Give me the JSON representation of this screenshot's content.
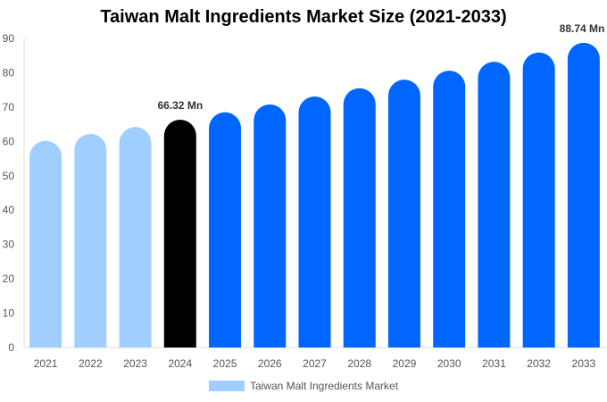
{
  "chart_data": {
    "type": "bar",
    "title": "Taiwan Malt Ingredients Market Size (2021-2033)",
    "categories": [
      "2021",
      "2022",
      "2023",
      "2024",
      "2025",
      "2026",
      "2027",
      "2028",
      "2029",
      "2030",
      "2031",
      "2032",
      "2033"
    ],
    "series": [
      {
        "name": "Taiwan Malt Ingredients Market",
        "values": [
          60.2,
          62.2,
          64.2,
          66.32,
          68.5,
          70.8,
          73.1,
          75.5,
          78.0,
          80.6,
          83.2,
          85.9,
          88.74
        ]
      }
    ],
    "data_labels": [
      {
        "category": "2024",
        "text": "66.32 Mn"
      },
      {
        "category": "2033",
        "text": "88.74 Mn"
      }
    ],
    "bar_colors": {
      "historical": "#a0cfff",
      "current": "#000000",
      "forecast": "#0066ff"
    },
    "historical_categories": [
      "2021",
      "2022",
      "2023"
    ],
    "current_category": "2024",
    "yticks": [
      0,
      10,
      20,
      30,
      40,
      50,
      60,
      70,
      80,
      90
    ],
    "ylim": [
      0,
      90
    ],
    "xlabel": "",
    "ylabel": "",
    "grid": false,
    "legend_position": "bottom"
  }
}
